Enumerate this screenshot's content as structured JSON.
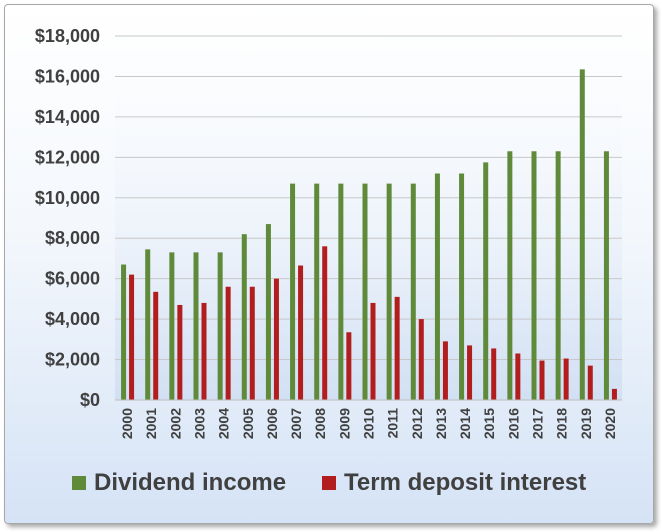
{
  "chart_data": {
    "type": "bar",
    "categories": [
      "2000",
      "2001",
      "2002",
      "2003",
      "2004",
      "2005",
      "2006",
      "2007",
      "2008",
      "2009",
      "2010",
      "2011",
      "2012",
      "2013",
      "2014",
      "2015",
      "2016",
      "2017",
      "2018",
      "2019",
      "2020"
    ],
    "series": [
      {
        "name": "Dividend income",
        "color": "#5e8a3a",
        "values": [
          6700,
          7450,
          7300,
          7300,
          7300,
          8200,
          8700,
          10700,
          10700,
          10700,
          10700,
          10700,
          10700,
          11200,
          11200,
          11750,
          12300,
          12300,
          12300,
          16350,
          12300
        ]
      },
      {
        "name": "Term deposit interest",
        "color": "#b21d1d",
        "values": [
          6200,
          5350,
          4700,
          4800,
          5600,
          5600,
          6000,
          6650,
          7600,
          3350,
          4800,
          5100,
          4000,
          2900,
          2700,
          2550,
          2300,
          1950,
          2050,
          1700,
          550
        ]
      }
    ],
    "y_tick_labels": [
      "$0",
      "$2,000",
      "$4,000",
      "$6,000",
      "$8,000",
      "$10,000",
      "$12,000",
      "$14,000",
      "$16,000",
      "$18,000"
    ],
    "ylim": [
      0,
      18000
    ],
    "title": "",
    "xlabel": "",
    "ylabel": "",
    "grid": true,
    "legend_position": "bottom"
  }
}
